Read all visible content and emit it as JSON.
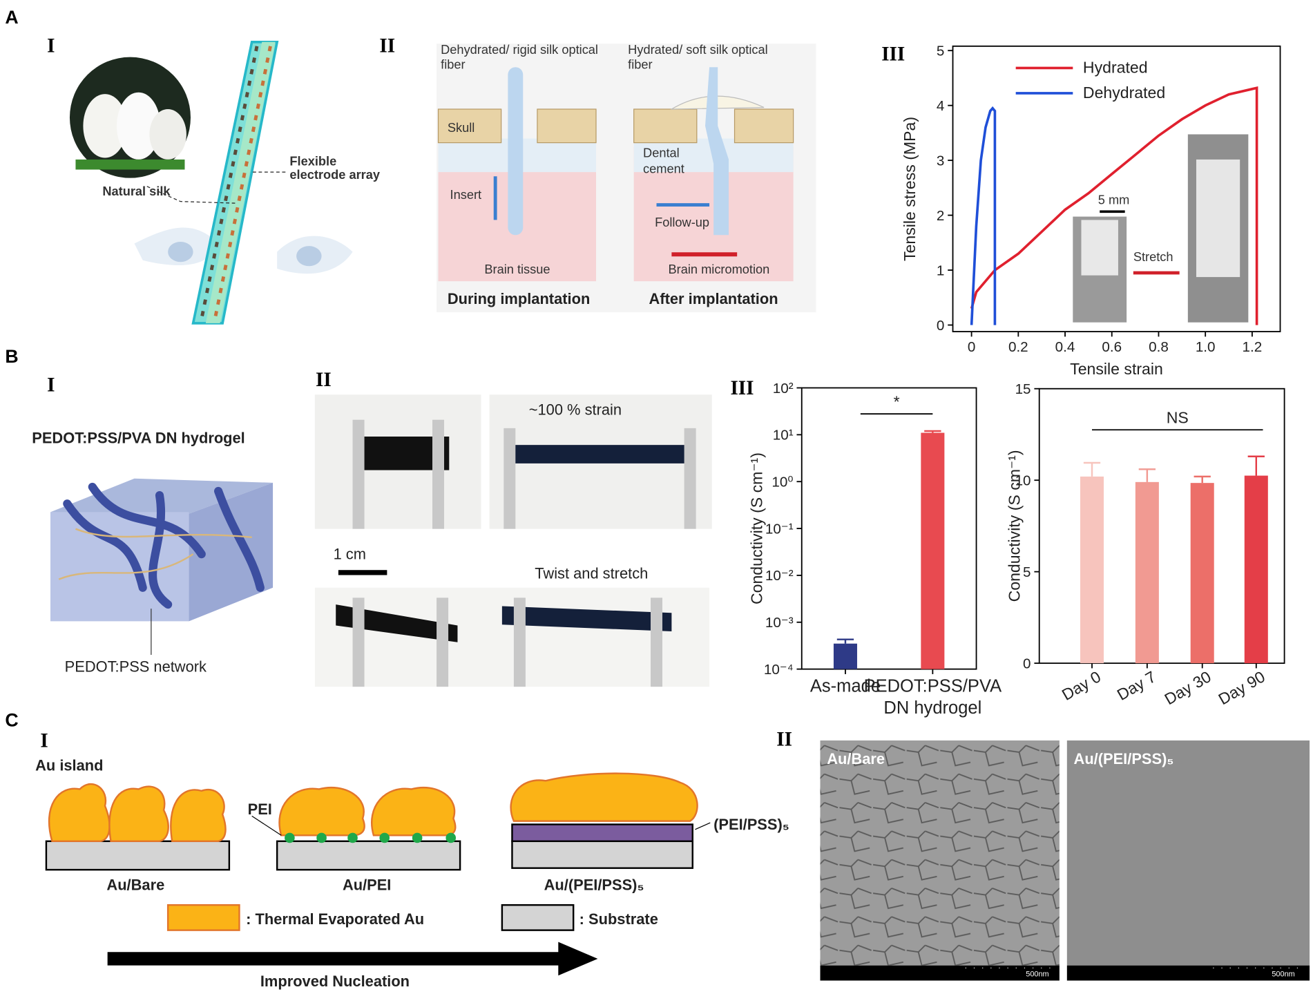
{
  "panels": {
    "A": {
      "label": "A",
      "I": {
        "numeral": "I",
        "natural_silk": "Natural silk",
        "flexible": "Flexible",
        "electrode_array": "electrode array"
      },
      "II": {
        "numeral": "II",
        "left_fiber_1": "Dehydrated/ rigid silk optical",
        "left_fiber_2": "fiber",
        "right_fiber_1": "Hydrated/ soft silk optical",
        "right_fiber_2": "fiber",
        "skull": "Skull",
        "insert": "Insert",
        "brain_tissue": "Brain tissue",
        "dental": "Dental",
        "cement": "cement",
        "follow_up": "Follow-up",
        "brain_micromotion": "Brain micromotion",
        "during": "During implantation",
        "after": "After implantation"
      },
      "III": {
        "numeral": "III"
      }
    },
    "B": {
      "label": "B",
      "I": {
        "numeral": "I",
        "title": "PEDOT:PSS/PVA DN hydrogel",
        "network": "PEDOT:PSS network"
      },
      "II": {
        "numeral": "II",
        "strain": "~100 % strain",
        "scale": "1 cm",
        "twist": "Twist and stretch"
      },
      "III": {
        "numeral": "III"
      }
    },
    "C": {
      "label": "C",
      "I": {
        "numeral": "I",
        "au_island": "Au island",
        "pei": "PEI",
        "pei_pss": "(PEI/PSS)₅",
        "au_bare": "Au/Bare",
        "au_pei": "Au/PEI",
        "au_pei_pss": "Au/(PEI/PSS)₅",
        "legend_au": ": Thermal Evaporated Au",
        "legend_substrate": ": Substrate",
        "arrow": "Improved Nucleation"
      },
      "II": {
        "numeral": "II",
        "left": "Au/Bare",
        "right": "Au/(PEI/PSS)₅",
        "scale_left": "500nm",
        "scale_right": "500nm"
      }
    }
  },
  "chart_data": [
    {
      "type": "line",
      "xlabel": "Tensile strain",
      "ylabel": "Tensile stress (MPa)",
      "xlim": [
        -0.08,
        1.32
      ],
      "ylim": [
        -0.12,
        5.08
      ],
      "xticks": [
        0,
        0.2,
        0.4,
        0.6,
        0.8,
        {
          "value": 1.0,
          "label": "1.0"
        },
        1.2
      ],
      "yticks": [
        0,
        1,
        2,
        3,
        4,
        5
      ],
      "legend": "upper left",
      "annotations": [
        "5 mm",
        "Stretch"
      ],
      "series": [
        {
          "name": "Hydrated",
          "color": "#e0202e",
          "x": [
            0,
            0.02,
            0.1,
            0.2,
            0.3,
            0.4,
            0.5,
            0.6,
            0.7,
            0.8,
            0.9,
            1.0,
            1.1,
            1.2,
            1.22,
            1.22
          ],
          "values": [
            0.3,
            0.6,
            1.0,
            1.3,
            1.7,
            2.1,
            2.4,
            2.75,
            3.1,
            3.45,
            3.75,
            4.0,
            4.2,
            4.3,
            4.32,
            0
          ]
        },
        {
          "name": "Dehydrated",
          "color": "#1f4fd8",
          "x": [
            0,
            0.02,
            0.04,
            0.06,
            0.08,
            0.09,
            0.1,
            0.1
          ],
          "values": [
            0,
            1.8,
            3.0,
            3.6,
            3.9,
            3.95,
            3.9,
            0
          ]
        }
      ]
    },
    {
      "type": "bar",
      "ylabel": "Conductivity (S cm⁻¹)",
      "log_scale": true,
      "categories": [
        "As-made",
        "PEDOT:PSS/PVA DN hydrogel"
      ],
      "values": [
        0.00035,
        11
      ],
      "errors": [
        8e-05,
        1
      ],
      "colors": [
        "#2e3a87",
        "#e84a50"
      ],
      "ylim": [
        0.0001,
        100
      ],
      "yticks": [
        {
          "value": 0.0001,
          "label": "10⁻⁴"
        },
        {
          "value": 0.001,
          "label": "10⁻³"
        },
        {
          "value": 0.01,
          "label": "10⁻²"
        },
        {
          "value": 0.1,
          "label": "10⁻¹"
        },
        {
          "value": 1,
          "label": "10⁰"
        },
        {
          "value": 10,
          "label": "10¹"
        },
        {
          "value": 100,
          "label": "10²"
        }
      ],
      "annotation": "*"
    },
    {
      "type": "bar",
      "ylabel": "Conductivity (S cm⁻¹)",
      "categories": [
        "Day 0",
        "Day 7",
        "Day 30",
        "Day 90"
      ],
      "values": [
        10.2,
        9.9,
        9.85,
        10.25
      ],
      "errors": [
        0.75,
        0.7,
        0.35,
        1.05
      ],
      "colors": [
        "#f7c4bd",
        "#f19a92",
        "#ec6f69",
        "#e43e48"
      ],
      "ylim": [
        0,
        15
      ],
      "yticks": [
        0,
        5,
        10,
        15
      ],
      "annotation": "NS"
    }
  ]
}
